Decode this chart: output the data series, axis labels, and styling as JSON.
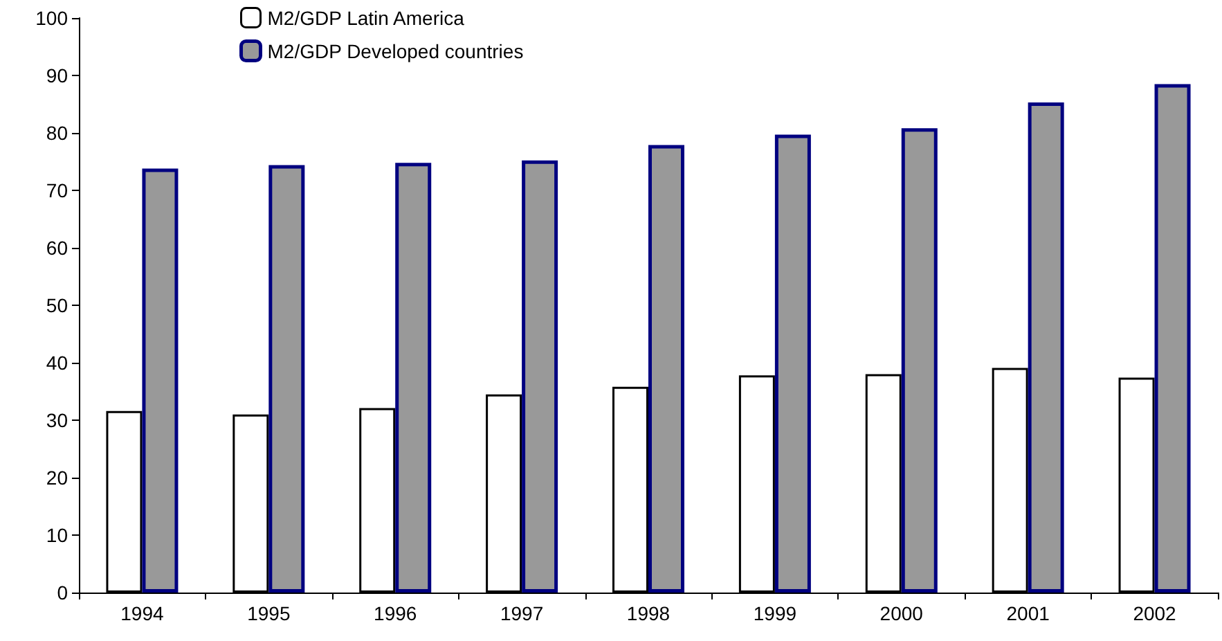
{
  "chart_data": {
    "type": "bar",
    "categories": [
      "1994",
      "1995",
      "1996",
      "1997",
      "1998",
      "1999",
      "2000",
      "2001",
      "2002"
    ],
    "series": [
      {
        "name": "M2/GDP Latin America",
        "color": "#ffffff",
        "values": [
          31.6,
          31.0,
          32.1,
          34.5,
          35.8,
          37.8,
          38.0,
          39.1,
          37.4
        ]
      },
      {
        "name": "M2/GDP Developed countries",
        "color": "#999999",
        "values": [
          73.8,
          74.4,
          74.8,
          75.2,
          77.9,
          79.7,
          80.8,
          85.3,
          88.5
        ]
      }
    ],
    "ylim": [
      0,
      100
    ],
    "yticks": [
      0,
      10,
      20,
      30,
      40,
      50,
      60,
      70,
      80,
      90,
      100
    ],
    "grid": false,
    "legend": "top"
  }
}
